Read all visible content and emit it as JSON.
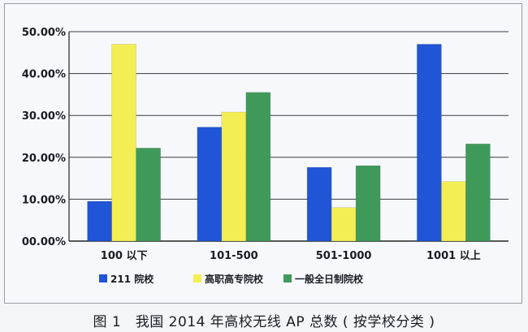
{
  "caption": "图 1　我国 2014 年高校无线 AP 总数 ( 按学校分类 )",
  "chart_data": {
    "type": "bar",
    "title": "",
    "xlabel": "",
    "ylabel": "",
    "categories": [
      "100 以下",
      "101-500",
      "501-1000",
      "1001 以上"
    ],
    "series": [
      {
        "name": "211 院校",
        "color": "#1f55d6",
        "values": [
          9.5,
          27.2,
          17.6,
          47.0
        ]
      },
      {
        "name": "高职高专院校",
        "color": "#f4ee55",
        "values": [
          47.0,
          30.8,
          8.0,
          14.2
        ]
      },
      {
        "name": "一般全日制院校",
        "color": "#3f9a5a",
        "values": [
          22.2,
          35.5,
          18.0,
          23.2
        ]
      }
    ],
    "ylim": [
      0,
      50
    ],
    "yticks": [
      0,
      10,
      20,
      30,
      40,
      50
    ],
    "ytick_labels": [
      "00.00%",
      "10.00%",
      "20.00%",
      "30.00%",
      "40.00%",
      "50.00%"
    ],
    "grid": true,
    "legend_position": "bottom"
  }
}
